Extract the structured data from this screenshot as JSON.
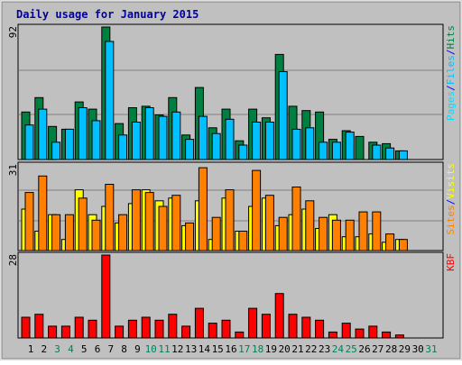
{
  "title": "Daily usage for January 2015",
  "colors": {
    "background": "#C0C0C0",
    "frame_outer": "#FFFFFF",
    "frame_inner": "#C0C0C0",
    "grid": "#808080",
    "title": "#0000A0",
    "hits": "#008040",
    "files": "#00C0FF",
    "pages": "#00E0FF",
    "visits": "#FFFF00",
    "sites": "#FF8000",
    "kbytes": "#FF0000",
    "weekday_label": "#000000",
    "weekend_label": "#00805C",
    "separator": "#0000FF"
  },
  "chart_data": {
    "type": "bar",
    "title": "Daily usage for January 2015",
    "categories": [
      "1",
      "2",
      "3",
      "4",
      "5",
      "6",
      "7",
      "8",
      "9",
      "10",
      "11",
      "12",
      "13",
      "14",
      "15",
      "16",
      "17",
      "18",
      "19",
      "20",
      "21",
      "22",
      "23",
      "24",
      "25",
      "26",
      "27",
      "28",
      "29",
      "30",
      "31"
    ],
    "weekend_days": [
      "3",
      "4",
      "10",
      "11",
      "17",
      "18",
      "24",
      "25",
      "31"
    ],
    "panels": [
      {
        "name": "hits-files-pages",
        "axis_max_label": "92",
        "ylim": [
          0,
          92
        ],
        "grid": true,
        "legend_placement": "right",
        "legend": [
          "Pages",
          "/",
          "Files",
          "/",
          "Hits"
        ],
        "series": [
          {
            "name": "Hits",
            "values": [
              33,
              43,
              23,
              21,
              40,
              35,
              92,
              25,
              36,
              37,
              31,
              43,
              17,
              50,
              22,
              35,
              13,
              35,
              29,
              73,
              37,
              34,
              33,
              14,
              20,
              16,
              12,
              11,
              6,
              0,
              0
            ]
          },
          {
            "name": "Files",
            "values": [
              24,
              35,
              12,
              21,
              36,
              27,
              82,
              17,
              26,
              36,
              30,
              33,
              14,
              30,
              18,
              28,
              10,
              26,
              26,
              61,
              21,
              22,
              12,
              12,
              19,
              0,
              10,
              8,
              6,
              0,
              0
            ]
          },
          {
            "name": "Pages",
            "values": [
              0,
              0,
              0,
              0,
              0,
              0,
              0,
              0,
              0,
              0,
              0,
              0,
              0,
              0,
              0,
              0,
              0,
              0,
              0,
              0,
              0,
              0,
              0,
              0,
              0,
              0,
              0,
              0,
              0,
              0,
              0
            ]
          }
        ]
      },
      {
        "name": "visits-sites",
        "axis_max_label": "31",
        "ylim": [
          0,
          31
        ],
        "grid": true,
        "legend_placement": "right",
        "legend": [
          "Sites",
          "/",
          "Visits"
        ],
        "series": [
          {
            "name": "Visits",
            "values": [
              15,
              7,
              13,
              4,
              22,
              13,
              16,
              10,
              17,
              22,
              18,
              19,
              9,
              18,
              4,
              19,
              7,
              16,
              19,
              9,
              13,
              15,
              8,
              13,
              5,
              5,
              6,
              3,
              4,
              0,
              0
            ]
          },
          {
            "name": "Sites",
            "values": [
              21,
              27,
              13,
              13,
              19,
              11,
              24,
              13,
              22,
              21,
              16,
              20,
              10,
              30,
              12,
              22,
              7,
              29,
              20,
              12,
              23,
              18,
              12,
              11,
              11,
              14,
              14,
              6,
              4,
              0,
              0
            ]
          }
        ]
      },
      {
        "name": "kbytes",
        "axis_max_label": "28",
        "ylim": [
          0,
          28
        ],
        "grid": false,
        "legend_placement": "right",
        "legend": [
          "KB",
          "F"
        ],
        "series": [
          {
            "name": "KBytes",
            "values": [
              7,
              8,
              4,
              4,
              7,
              6,
              28,
              4,
              6,
              7,
              6,
              8,
              4,
              10,
              5,
              6,
              2,
              10,
              8,
              15,
              8,
              7,
              6,
              2,
              5,
              3,
              4,
              2,
              1,
              0,
              0
            ]
          }
        ]
      }
    ]
  }
}
